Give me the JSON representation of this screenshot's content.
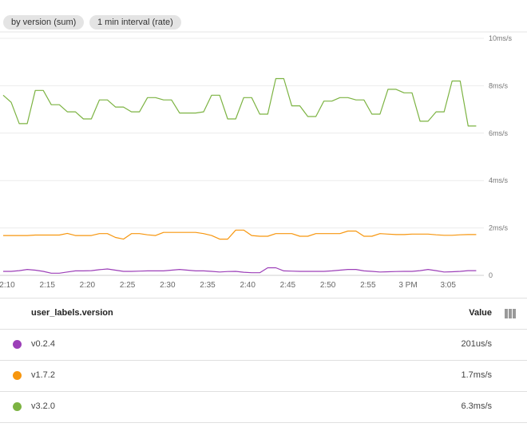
{
  "chips": [
    "by version (sum)",
    "1 min interval (rate)"
  ],
  "chart_data": {
    "type": "line",
    "y_unit": "ms/s",
    "ylim": [
      0,
      10
    ],
    "y_ticks": [
      {
        "v": 0,
        "label": "0"
      },
      {
        "v": 2,
        "label": "2ms/s"
      },
      {
        "v": 4,
        "label": "4ms/s"
      },
      {
        "v": 6,
        "label": "6ms/s"
      },
      {
        "v": 8,
        "label": "8ms/s"
      },
      {
        "v": 10,
        "label": "10ms/s"
      }
    ],
    "x_ticks": [
      "2:10",
      "2:15",
      "2:20",
      "2:25",
      "2:30",
      "2:35",
      "2:40",
      "2:45",
      "2:50",
      "2:55",
      "3 PM",
      "3:05"
    ],
    "x": [
      "2:10",
      "2:11",
      "2:12",
      "2:13",
      "2:14",
      "2:15",
      "2:16",
      "2:17",
      "2:18",
      "2:19",
      "2:20",
      "2:21",
      "2:22",
      "2:23",
      "2:24",
      "2:25",
      "2:26",
      "2:27",
      "2:28",
      "2:29",
      "2:30",
      "2:31",
      "2:32",
      "2:33",
      "2:34",
      "2:35",
      "2:36",
      "2:37",
      "2:38",
      "2:39",
      "2:40",
      "2:41",
      "2:42",
      "2:43",
      "2:44",
      "2:45",
      "2:46",
      "2:47",
      "2:48",
      "2:49",
      "2:50",
      "2:51",
      "2:52",
      "2:53",
      "2:54",
      "2:55",
      "2:56",
      "2:57",
      "2:58",
      "2:59",
      "3:00",
      "3:01",
      "3:02",
      "3:03",
      "3:04",
      "3:05",
      "3:06",
      "3:07",
      "3:08",
      "3:09"
    ],
    "grid": true,
    "series": [
      {
        "name": "v0.2.4",
        "color": "#9c3fb8",
        "values": [
          0.17,
          0.17,
          0.2,
          0.25,
          0.22,
          0.17,
          0.09,
          0.09,
          0.14,
          0.19,
          0.19,
          0.2,
          0.24,
          0.27,
          0.22,
          0.17,
          0.17,
          0.18,
          0.19,
          0.19,
          0.19,
          0.22,
          0.25,
          0.22,
          0.19,
          0.19,
          0.17,
          0.14,
          0.16,
          0.17,
          0.13,
          0.11,
          0.11,
          0.32,
          0.32,
          0.19,
          0.18,
          0.17,
          0.17,
          0.17,
          0.17,
          0.19,
          0.22,
          0.25,
          0.25,
          0.19,
          0.17,
          0.14,
          0.15,
          0.16,
          0.17,
          0.17,
          0.2,
          0.25,
          0.2,
          0.14,
          0.15,
          0.17,
          0.2,
          0.2
        ]
      },
      {
        "name": "v1.7.2",
        "color": "#f7960e",
        "values": [
          1.68,
          1.68,
          1.68,
          1.68,
          1.7,
          1.7,
          1.7,
          1.7,
          1.77,
          1.68,
          1.68,
          1.68,
          1.76,
          1.76,
          1.6,
          1.53,
          1.76,
          1.76,
          1.71,
          1.68,
          1.81,
          1.81,
          1.81,
          1.81,
          1.81,
          1.76,
          1.68,
          1.53,
          1.53,
          1.91,
          1.91,
          1.68,
          1.65,
          1.65,
          1.76,
          1.76,
          1.76,
          1.65,
          1.65,
          1.76,
          1.76,
          1.76,
          1.76,
          1.87,
          1.87,
          1.65,
          1.65,
          1.76,
          1.74,
          1.72,
          1.72,
          1.74,
          1.74,
          1.74,
          1.71,
          1.69,
          1.69,
          1.71,
          1.72,
          1.72
        ]
      },
      {
        "name": "v3.2.0",
        "color": "#7cb342",
        "values": [
          7.6,
          7.3,
          6.4,
          6.4,
          7.8,
          7.8,
          7.2,
          7.2,
          6.9,
          6.9,
          6.6,
          6.6,
          7.4,
          7.4,
          7.1,
          7.1,
          6.9,
          6.9,
          7.5,
          7.5,
          7.4,
          7.4,
          6.85,
          6.85,
          6.85,
          6.9,
          7.6,
          7.6,
          6.6,
          6.6,
          7.5,
          7.5,
          6.8,
          6.8,
          8.3,
          8.3,
          7.15,
          7.15,
          6.7,
          6.7,
          7.35,
          7.35,
          7.5,
          7.5,
          7.4,
          7.4,
          6.8,
          6.8,
          7.85,
          7.85,
          7.7,
          7.7,
          6.5,
          6.5,
          6.9,
          6.9,
          8.2,
          8.2,
          6.3,
          6.3
        ]
      }
    ]
  },
  "table": {
    "header": {
      "label": "user_labels.version",
      "value": "Value",
      "columns_icon": "view-column-icon"
    },
    "rows": [
      {
        "label": "v0.2.4",
        "value": "201us/s",
        "color": "#9c3fb8"
      },
      {
        "label": "v1.7.2",
        "value": "1.7ms/s",
        "color": "#f7960e"
      },
      {
        "label": "v3.2.0",
        "value": "6.3ms/s",
        "color": "#7cb342"
      }
    ]
  }
}
